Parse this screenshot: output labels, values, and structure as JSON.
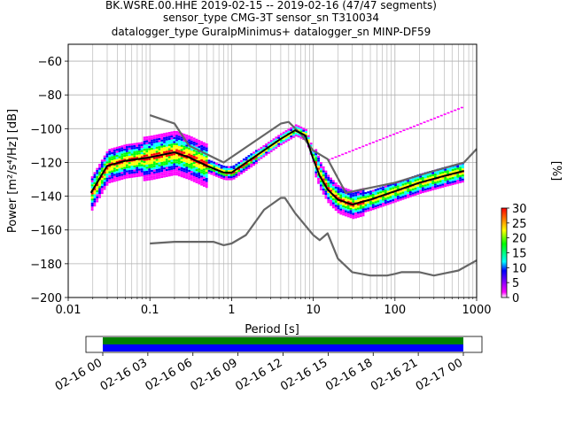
{
  "chart_data": {
    "type": "heatmap",
    "title_lines": [
      "BK.WSRE.00.HHE   2019-02-15 -- 2019-02-16  (47/47 segments)",
      "sensor_type CMG-3T sensor_sn T310034",
      "datalogger_type GuralpMinimus+ datalogger_sn MINP-DF59"
    ],
    "xlabel": "Period [s]",
    "ylabel": "Power [m²/s⁴/Hz] [dB]",
    "xscale": "log",
    "xlim": [
      0.01,
      1000
    ],
    "ylim": [
      -200,
      -50
    ],
    "x_ticks": [
      0.01,
      0.1,
      1,
      10,
      100,
      1000
    ],
    "x_tick_labels": [
      "0.01",
      "0.1",
      "1",
      "10",
      "100",
      "1000"
    ],
    "y_ticks": [
      -200,
      -180,
      -160,
      -140,
      -120,
      -100,
      -80,
      -60
    ],
    "y_tick_labels": [
      "−200",
      "−180",
      "−160",
      "−140",
      "−120",
      "−100",
      "−80",
      "−60"
    ],
    "grid": true,
    "colorbar": {
      "label": "[%]",
      "range": [
        0,
        30
      ],
      "ticks": [
        0,
        5,
        10,
        15,
        20,
        25,
        30
      ],
      "tick_labels": [
        "0",
        "5",
        "10",
        "15",
        "20",
        "25",
        "30"
      ],
      "colors": [
        "#ffffff",
        "#ff00ff",
        "#0000ff",
        "#00ffff",
        "#00ff00",
        "#ffff00",
        "#ff0000"
      ]
    },
    "series": [
      {
        "color": "#666666",
        "points": [
          [
            0.1,
            -92
          ],
          [
            0.2,
            -97
          ],
          [
            0.3,
            -110
          ],
          [
            0.8,
            -120
          ],
          [
            4,
            -97
          ],
          [
            5,
            -96
          ],
          [
            7,
            -103
          ],
          [
            10,
            -113
          ],
          [
            15,
            -118
          ],
          [
            25,
            -138
          ],
          [
            100,
            -132
          ],
          [
            300,
            -125
          ],
          [
            700,
            -120
          ],
          [
            1000,
            -112
          ]
        ]
      },
      {
        "color": "#666666",
        "points": [
          [
            0.1,
            -168
          ],
          [
            0.2,
            -167
          ],
          [
            0.6,
            -167
          ],
          [
            0.8,
            -169
          ],
          [
            1,
            -168
          ],
          [
            1.5,
            -163
          ],
          [
            2.5,
            -148
          ],
          [
            4,
            -141
          ],
          [
            4.5,
            -141
          ],
          [
            6,
            -150
          ],
          [
            10,
            -163
          ],
          [
            12,
            -166
          ],
          [
            15,
            -162
          ],
          [
            20,
            -177
          ],
          [
            30,
            -185
          ],
          [
            50,
            -187
          ],
          [
            80,
            -187
          ],
          [
            100,
            -186
          ],
          [
            120,
            -185
          ],
          [
            200,
            -185
          ],
          [
            300,
            -187
          ],
          [
            600,
            -184
          ],
          [
            1000,
            -178
          ]
        ]
      },
      {
        "color": "#000000",
        "points": [
          [
            0.019,
            -138
          ],
          [
            0.03,
            -122
          ],
          [
            0.05,
            -119
          ],
          [
            0.1,
            -117
          ],
          [
            0.2,
            -114
          ],
          [
            0.3,
            -117
          ],
          [
            0.5,
            -122
          ],
          [
            0.8,
            -126
          ],
          [
            1,
            -126
          ],
          [
            2,
            -116
          ],
          [
            4,
            -106
          ],
          [
            6,
            -101
          ],
          [
            8,
            -104
          ],
          [
            10,
            -118
          ],
          [
            12,
            -128
          ],
          [
            15,
            -136
          ],
          [
            20,
            -142
          ],
          [
            30,
            -145
          ],
          [
            50,
            -142
          ],
          [
            100,
            -137
          ],
          [
            200,
            -132
          ],
          [
            400,
            -128
          ],
          [
            700,
            -125
          ]
        ]
      }
    ],
    "timeline": {
      "x_tick_labels": [
        "02-16 00",
        "02-16 03",
        "02-16 06",
        "02-16 09",
        "02-16 12",
        "02-16 15",
        "02-16 18",
        "02-16 21",
        "02-17 00"
      ],
      "bands": [
        "#008000",
        "#0000ff"
      ]
    }
  }
}
